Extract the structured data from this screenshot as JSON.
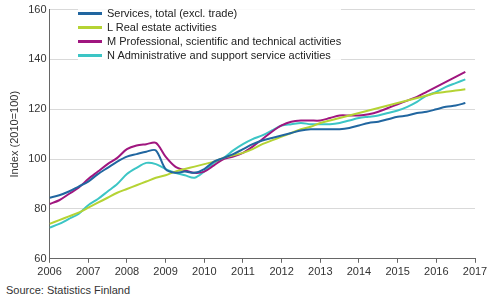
{
  "chart_data": {
    "type": "line",
    "y_label": "Index (2010=100)",
    "source": "Source: Statistics Finland",
    "x": [
      2006,
      2006.25,
      2006.5,
      2006.75,
      2007,
      2007.25,
      2007.5,
      2007.75,
      2008,
      2008.25,
      2008.5,
      2008.75,
      2009,
      2009.25,
      2009.5,
      2009.75,
      2010,
      2010.25,
      2010.5,
      2010.75,
      2011,
      2011.25,
      2011.5,
      2011.75,
      2012,
      2012.25,
      2012.5,
      2012.75,
      2013,
      2013.25,
      2013.5,
      2013.75,
      2014,
      2014.25,
      2014.5,
      2014.75,
      2015,
      2015.25,
      2015.5,
      2015.75,
      2016,
      2016.25,
      2016.5,
      2016.75
    ],
    "series": [
      {
        "name": "Services, total (excl. trade)",
        "color": "#2166a0",
        "values": [
          84.5,
          85.5,
          87,
          89,
          91,
          94,
          96.5,
          99,
          101,
          102,
          103,
          103.5,
          96,
          94.5,
          95,
          94.5,
          96,
          99,
          100.5,
          102,
          104,
          106,
          107.5,
          108.5,
          109.5,
          110.5,
          111.5,
          112,
          112,
          112,
          112,
          112.5,
          113.5,
          114.5,
          115,
          116,
          117,
          117.5,
          118.5,
          119,
          120,
          121,
          121.5,
          122.5
        ]
      },
      {
        "name": "L Real estate activities",
        "color": "#b5d334",
        "values": [
          74,
          75.5,
          77,
          78.5,
          80.5,
          82.5,
          84.5,
          86.5,
          88,
          89.5,
          91,
          92.5,
          93.5,
          95,
          96,
          97,
          98,
          99,
          100.5,
          101.5,
          102.5,
          104,
          106,
          107.5,
          109,
          110.5,
          112,
          113,
          114.5,
          115.5,
          116.5,
          117.5,
          118.5,
          119.5,
          120.5,
          121.5,
          122.5,
          123.5,
          124.5,
          125.5,
          126.5,
          127,
          127.5,
          128
        ]
      },
      {
        "name": "M Professional, scientific and technical activities",
        "color": "#a0167f",
        "values": [
          82,
          83.5,
          86,
          88.5,
          92,
          95,
          98,
          100.5,
          104,
          105.5,
          106,
          106.5,
          101,
          97,
          95.5,
          94.5,
          95,
          97.5,
          100,
          101,
          102.5,
          105,
          108,
          111,
          113.5,
          115,
          115.5,
          115.5,
          115.5,
          116.5,
          117.5,
          117.5,
          117.5,
          118,
          119,
          120.5,
          122,
          123.5,
          125,
          127,
          129,
          131,
          133,
          135
        ]
      },
      {
        "name": "N Administrative and support service activities",
        "color": "#3cc5c5",
        "values": [
          72.5,
          74,
          76,
          78,
          81.5,
          84,
          87,
          90,
          94,
          96.5,
          98.5,
          98,
          96,
          94.5,
          93.5,
          92.5,
          95,
          98.5,
          100.5,
          103.5,
          106,
          108,
          109.5,
          111.5,
          113.5,
          114,
          114.5,
          114,
          114,
          114,
          114.5,
          115.5,
          116.5,
          117,
          117.5,
          118.5,
          119.5,
          121,
          123,
          125.5,
          127,
          129,
          130.5,
          132
        ]
      }
    ],
    "xlim": [
      2006,
      2017
    ],
    "xticks": [
      2006,
      2007,
      2008,
      2009,
      2010,
      2011,
      2012,
      2013,
      2014,
      2015,
      2016,
      2017
    ],
    "ylim": [
      60,
      160
    ],
    "yticks": [
      60,
      80,
      100,
      120,
      140,
      160
    ],
    "grid": true,
    "legend": "upper left"
  }
}
